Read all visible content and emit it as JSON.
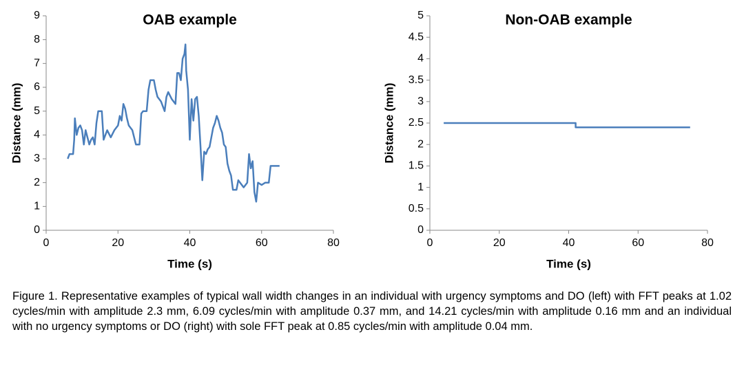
{
  "chart_data": [
    {
      "type": "line",
      "title": "OAB example",
      "xlabel": "Time (s)",
      "ylabel": "Distance (mm)",
      "xlim": [
        0,
        80
      ],
      "xticks": [
        0,
        20,
        40,
        60,
        80
      ],
      "ylim": [
        0,
        9
      ],
      "yticks": [
        0,
        1,
        2,
        3,
        4,
        5,
        6,
        7,
        8,
        9
      ],
      "series": [
        {
          "color": "#4a7ebb",
          "x": [
            6,
            6.5,
            7.5,
            7.8,
            8,
            8.5,
            9,
            9.5,
            10,
            10.5,
            11,
            12,
            12.5,
            13,
            13.5,
            14,
            14.5,
            15.5,
            16,
            16.5,
            17,
            18,
            19,
            20,
            20.5,
            21,
            21.5,
            22,
            22.5,
            23,
            24,
            25,
            26,
            26.5,
            27,
            28,
            28.5,
            29,
            30,
            30.5,
            31,
            32,
            33,
            33.5,
            34,
            35,
            36,
            36.5,
            37,
            37.5,
            38,
            38.5,
            38.8,
            39,
            39.5,
            40,
            40.5,
            41,
            41.5,
            42,
            42.5,
            43,
            43.5,
            44,
            44.5,
            45,
            45.5,
            46,
            46.5,
            47,
            47.5,
            48,
            48.5,
            49,
            49.5,
            50,
            50.5,
            51,
            51.5,
            52,
            53,
            53.5,
            54,
            55,
            56,
            56.5,
            57,
            57.5,
            58,
            58.5,
            59,
            60,
            61,
            62,
            62.5,
            65
          ],
          "values": [
            3.0,
            3.2,
            3.2,
            3.8,
            4.7,
            4.0,
            4.3,
            4.4,
            4.2,
            3.6,
            4.2,
            3.6,
            3.8,
            3.9,
            3.6,
            4.5,
            5.0,
            5.0,
            3.8,
            4.0,
            4.2,
            3.9,
            4.2,
            4.4,
            4.8,
            4.6,
            5.3,
            5.1,
            4.7,
            4.4,
            4.2,
            3.6,
            3.6,
            4.9,
            5.0,
            5.0,
            5.9,
            6.3,
            6.3,
            5.9,
            5.6,
            5.4,
            5.0,
            5.6,
            5.8,
            5.5,
            5.3,
            6.6,
            6.6,
            6.3,
            7.2,
            7.4,
            7.8,
            6.7,
            5.9,
            3.8,
            5.5,
            4.6,
            5.5,
            5.6,
            4.8,
            3.5,
            2.1,
            3.3,
            3.2,
            3.4,
            3.5,
            3.9,
            4.3,
            4.5,
            4.8,
            4.6,
            4.3,
            4.1,
            3.6,
            3.5,
            2.8,
            2.5,
            2.3,
            1.7,
            1.7,
            2.1,
            2.0,
            1.8,
            2.0,
            3.2,
            2.6,
            2.9,
            1.6,
            1.2,
            2.0,
            1.9,
            2.0,
            2.0,
            2.7,
            2.7
          ]
        }
      ]
    },
    {
      "type": "line",
      "title": "Non-OAB example",
      "xlabel": "Time (s)",
      "ylabel": "Distance (mm)",
      "xlim": [
        0,
        80
      ],
      "xticks": [
        0,
        20,
        40,
        60,
        80
      ],
      "ylim": [
        0,
        5
      ],
      "yticks": [
        0,
        0.5,
        1,
        1.5,
        2,
        2.5,
        3,
        3.5,
        4,
        4.5,
        5
      ],
      "series": [
        {
          "color": "#4a7ebb",
          "x": [
            4,
            42,
            42,
            75
          ],
          "values": [
            2.5,
            2.5,
            2.4,
            2.4
          ]
        }
      ]
    }
  ],
  "caption": "Figure 1. Representative examples of typical wall width changes in an individual with urgency symptoms and DO (left) with FFT peaks at 1.02 cycles/min with amplitude 2.3 mm, 6.09 cycles/min with amplitude 0.37 mm, and 14.21 cycles/min with amplitude 0.16 mm and an individual with no urgency symptoms or DO (right) with sole FFT peak at 0.85 cycles/min with amplitude 0.04 mm."
}
